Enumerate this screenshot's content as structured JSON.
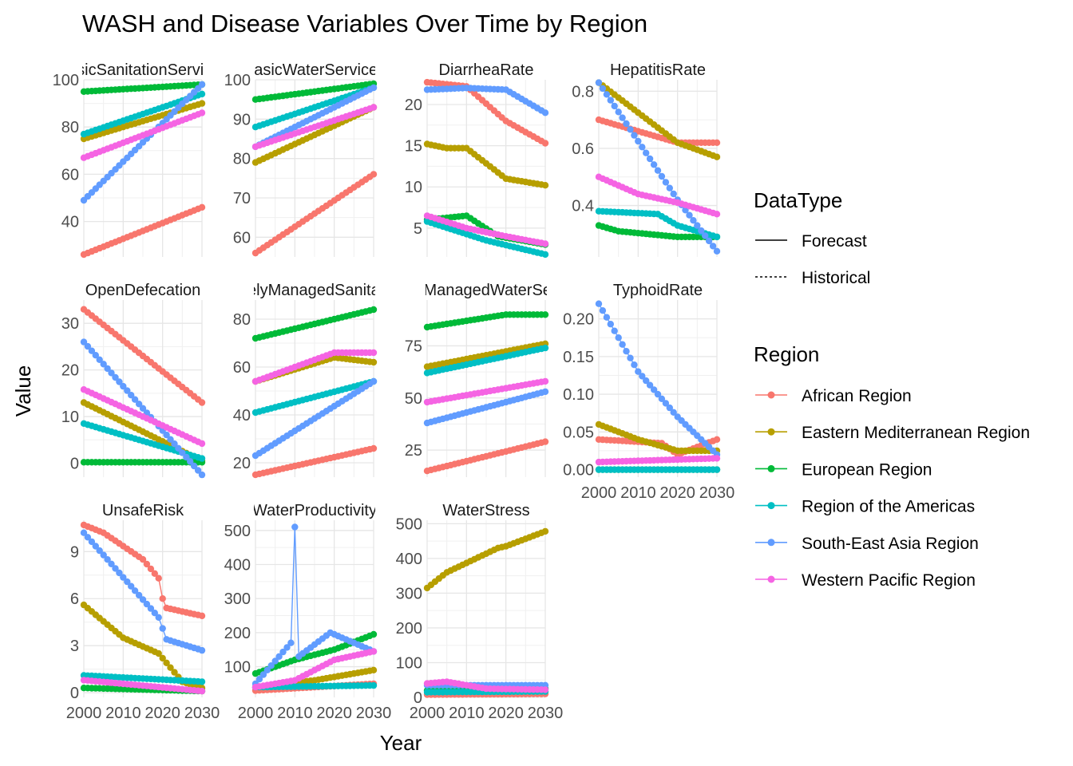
{
  "title": "WASH and Disease Variables Over Time by Region",
  "xlabel": "Year",
  "ylabel": "Value",
  "legend": {
    "datatype_title": "DataType",
    "datatype_items": [
      {
        "label": "Forecast",
        "linetype": "solid"
      },
      {
        "label": "Historical",
        "linetype": "dotted"
      }
    ],
    "region_title": "Region"
  },
  "chart_data": {
    "type": "line",
    "facets_layout": "4 columns, free y scales",
    "x_range": [
      2000,
      2030
    ],
    "x_ticks": [
      2000,
      2010,
      2020,
      2030
    ],
    "grid": true,
    "regions": [
      {
        "name": "African Region",
        "color": "#F8766D"
      },
      {
        "name": "Eastern Mediterranean Region",
        "color": "#B79F00"
      },
      {
        "name": "European Region",
        "color": "#00BA38"
      },
      {
        "name": "Region of the Americas",
        "color": "#00BFC4"
      },
      {
        "name": "South-East Asia Region",
        "color": "#619CFF"
      },
      {
        "name": "Western Pacific Region",
        "color": "#F564E3"
      }
    ],
    "panels": [
      {
        "label": "BasicSanitationServices",
        "ylim": [
          25,
          100
        ],
        "yticks": [
          40,
          60,
          80,
          100
        ],
        "series": {
          "African Region": [
            [
              2000,
              26
            ],
            [
              2030,
              46
            ]
          ],
          "Eastern Mediterranean Region": [
            [
              2000,
              75
            ],
            [
              2030,
              90
            ]
          ],
          "European Region": [
            [
              2000,
              95
            ],
            [
              2030,
              98
            ]
          ],
          "Region of the Americas": [
            [
              2000,
              77
            ],
            [
              2030,
              94
            ]
          ],
          "South-East Asia Region": [
            [
              2000,
              49
            ],
            [
              2030,
              98
            ]
          ],
          "Western Pacific Region": [
            [
              2000,
              67
            ],
            [
              2030,
              86
            ]
          ]
        }
      },
      {
        "label": "BasicWaterServices",
        "ylim": [
          55,
          100
        ],
        "yticks": [
          60,
          70,
          80,
          90,
          100
        ],
        "series": {
          "African Region": [
            [
              2000,
              56
            ],
            [
              2030,
              76
            ]
          ],
          "Eastern Mediterranean Region": [
            [
              2000,
              79
            ],
            [
              2030,
              93
            ]
          ],
          "European Region": [
            [
              2000,
              95
            ],
            [
              2030,
              99
            ]
          ],
          "Region of the Americas": [
            [
              2000,
              88
            ],
            [
              2030,
              98
            ]
          ],
          "South-East Asia Region": [
            [
              2000,
              83
            ],
            [
              2030,
              98
            ]
          ],
          "Western Pacific Region": [
            [
              2000,
              83
            ],
            [
              2030,
              93
            ]
          ]
        }
      },
      {
        "label": "DiarrheaRate",
        "ylim": [
          1.5,
          23
        ],
        "yticks": [
          5,
          10,
          15,
          20
        ],
        "series": {
          "African Region": [
            [
              2000,
              22.7
            ],
            [
              2010,
              22.2
            ],
            [
              2020,
              18
            ],
            [
              2030,
              15.3
            ]
          ],
          "Eastern Mediterranean Region": [
            [
              2000,
              15.2
            ],
            [
              2005,
              14.7
            ],
            [
              2010,
              14.7
            ],
            [
              2020,
              11
            ],
            [
              2030,
              10.2
            ]
          ],
          "European Region": [
            [
              2000,
              6
            ],
            [
              2010,
              6.5
            ],
            [
              2018,
              4
            ],
            [
              2030,
              3
            ]
          ],
          "Region of the Americas": [
            [
              2000,
              5.8
            ],
            [
              2015,
              3.5
            ],
            [
              2030,
              1.8
            ]
          ],
          "South-East Asia Region": [
            [
              2000,
              21.8
            ],
            [
              2010,
              22
            ],
            [
              2020,
              21.8
            ],
            [
              2030,
              19
            ]
          ],
          "Western Pacific Region": [
            [
              2000,
              6.5
            ],
            [
              2010,
              5
            ],
            [
              2020,
              4
            ],
            [
              2030,
              3.1
            ]
          ]
        }
      },
      {
        "label": "HepatitisRate",
        "ylim": [
          0.22,
          0.84
        ],
        "yticks": [
          0.4,
          0.6,
          0.8
        ],
        "series": {
          "African Region": [
            [
              2000,
              0.7
            ],
            [
              2005,
              0.68
            ],
            [
              2020,
              0.62
            ],
            [
              2030,
              0.62
            ]
          ],
          "Eastern Mediterranean Region": [
            [
              2000,
              0.83
            ],
            [
              2020,
              0.62
            ],
            [
              2030,
              0.57
            ]
          ],
          "European Region": [
            [
              2000,
              0.33
            ],
            [
              2005,
              0.31
            ],
            [
              2020,
              0.29
            ],
            [
              2030,
              0.29
            ]
          ],
          "Region of the Americas": [
            [
              2000,
              0.38
            ],
            [
              2015,
              0.37
            ],
            [
              2020,
              0.33
            ],
            [
              2030,
              0.29
            ]
          ],
          "South-East Asia Region": [
            [
              2000,
              0.83
            ],
            [
              2020,
              0.42
            ],
            [
              2030,
              0.24
            ]
          ],
          "Western Pacific Region": [
            [
              2000,
              0.5
            ],
            [
              2010,
              0.44
            ],
            [
              2020,
              0.41
            ],
            [
              2030,
              0.37
            ]
          ]
        }
      },
      {
        "label": "OpenDefecation",
        "ylim": [
          -3,
          35
        ],
        "yticks": [
          0,
          10,
          20,
          30
        ],
        "series": {
          "African Region": [
            [
              2000,
              33
            ],
            [
              2030,
              13
            ]
          ],
          "Eastern Mediterranean Region": [
            [
              2000,
              13
            ],
            [
              2030,
              0.5
            ]
          ],
          "European Region": [
            [
              2000,
              0.2
            ],
            [
              2030,
              0.2
            ]
          ],
          "Region of the Americas": [
            [
              2000,
              8.5
            ],
            [
              2030,
              1
            ]
          ],
          "South-East Asia Region": [
            [
              2000,
              26
            ],
            [
              2030,
              -2.5
            ]
          ],
          "Western Pacific Region": [
            [
              2000,
              15.8
            ],
            [
              2030,
              4.2
            ]
          ]
        }
      },
      {
        "label": "SafelyManagedSanitation",
        "ylim": [
          14,
          88
        ],
        "yticks": [
          20,
          40,
          60,
          80
        ],
        "series": {
          "African Region": [
            [
              2000,
              15
            ],
            [
              2030,
              26
            ]
          ],
          "Eastern Mediterranean Region": [
            [
              2000,
              54
            ],
            [
              2020,
              64
            ],
            [
              2030,
              62
            ]
          ],
          "European Region": [
            [
              2000,
              72
            ],
            [
              2030,
              84
            ]
          ],
          "Region of the Americas": [
            [
              2000,
              41
            ],
            [
              2030,
              54
            ]
          ],
          "South-East Asia Region": [
            [
              2000,
              23
            ],
            [
              2030,
              54
            ]
          ],
          "Western Pacific Region": [
            [
              2000,
              54
            ],
            [
              2020,
              66
            ],
            [
              2030,
              66
            ]
          ]
        }
      },
      {
        "label": "SafelyManagedWaterServices",
        "ylim": [
          12,
          97
        ],
        "yticks": [
          25,
          50,
          75
        ],
        "series": {
          "African Region": [
            [
              2000,
              15
            ],
            [
              2030,
              29
            ]
          ],
          "Eastern Mediterranean Region": [
            [
              2000,
              65
            ],
            [
              2030,
              76
            ]
          ],
          "European Region": [
            [
              2000,
              84
            ],
            [
              2020,
              90
            ],
            [
              2030,
              90
            ]
          ],
          "Region of the Americas": [
            [
              2000,
              62
            ],
            [
              2030,
              74
            ]
          ],
          "South-East Asia Region": [
            [
              2000,
              38
            ],
            [
              2030,
              53
            ]
          ],
          "Western Pacific Region": [
            [
              2000,
              48
            ],
            [
              2030,
              58
            ]
          ]
        }
      },
      {
        "label": "TyphoidRate",
        "ylim": [
          -0.01,
          0.225
        ],
        "yticks": [
          0.0,
          0.05,
          0.1,
          0.15,
          0.2
        ],
        "series": {
          "African Region": [
            [
              2000,
              0.04
            ],
            [
              2016,
              0.035
            ],
            [
              2020,
              0.02
            ],
            [
              2030,
              0.04
            ]
          ],
          "Eastern Mediterranean Region": [
            [
              2000,
              0.06
            ],
            [
              2010,
              0.04
            ],
            [
              2020,
              0.025
            ],
            [
              2030,
              0.025
            ]
          ],
          "European Region": [
            [
              2000,
              0.0
            ],
            [
              2030,
              0.0
            ]
          ],
          "Region of the Americas": [
            [
              2000,
              0.0
            ],
            [
              2030,
              0.0
            ]
          ],
          "South-East Asia Region": [
            [
              2000,
              0.22
            ],
            [
              2010,
              0.13
            ],
            [
              2020,
              0.07
            ],
            [
              2030,
              0.02
            ]
          ],
          "Western Pacific Region": [
            [
              2000,
              0.01
            ],
            [
              2030,
              0.015
            ]
          ]
        }
      },
      {
        "label": "UnsafeRisk",
        "ylim": [
          -0.3,
          11
        ],
        "yticks": [
          0,
          3,
          6,
          9
        ],
        "series": {
          "African Region": [
            [
              2000,
              10.7
            ],
            [
              2005,
              10.2
            ],
            [
              2015,
              8.5
            ],
            [
              2019,
              7.3
            ],
            [
              2020,
              6
            ],
            [
              2021,
              5.4
            ],
            [
              2030,
              4.9
            ]
          ],
          "Eastern Mediterranean Region": [
            [
              2000,
              5.6
            ],
            [
              2010,
              3.5
            ],
            [
              2019,
              2.5
            ],
            [
              2025,
              0.7
            ],
            [
              2030,
              0.3
            ]
          ],
          "European Region": [
            [
              2000,
              0.3
            ],
            [
              2030,
              0.1
            ]
          ],
          "Region of the Americas": [
            [
              2000,
              1.1
            ],
            [
              2030,
              0.7
            ]
          ],
          "South-East Asia Region": [
            [
              2000,
              10.2
            ],
            [
              2019,
              4.8
            ],
            [
              2021,
              3.4
            ],
            [
              2030,
              2.7
            ]
          ],
          "Western Pacific Region": [
            [
              2000,
              0.8
            ],
            [
              2030,
              0.1
            ]
          ]
        }
      },
      {
        "label": "WaterProductivity",
        "ylim": [
          10,
          530
        ],
        "yticks": [
          100,
          200,
          300,
          400,
          500
        ],
        "series": {
          "African Region": [
            [
              2000,
              30
            ],
            [
              2030,
              50
            ]
          ],
          "Eastern Mediterranean Region": [
            [
              2000,
              40
            ],
            [
              2015,
              60
            ],
            [
              2030,
              90
            ]
          ],
          "European Region": [
            [
              2000,
              80
            ],
            [
              2010,
              120
            ],
            [
              2020,
              150
            ],
            [
              2030,
              195
            ]
          ],
          "Region of the Americas": [
            [
              2000,
              40
            ],
            [
              2030,
              45
            ]
          ],
          "South-East Asia Region": [
            [
              2000,
              50
            ],
            [
              2009,
              170
            ],
            [
              2010,
              510
            ],
            [
              2011,
              130
            ],
            [
              2019,
              200
            ],
            [
              2030,
              145
            ]
          ],
          "Western Pacific Region": [
            [
              2000,
              40
            ],
            [
              2010,
              60
            ],
            [
              2020,
              120
            ],
            [
              2030,
              145
            ]
          ]
        }
      },
      {
        "label": "WaterStress",
        "ylim": [
          0,
          510
        ],
        "yticks": [
          0,
          100,
          200,
          300,
          400,
          500
        ],
        "series": {
          "African Region": [
            [
              2000,
              8
            ],
            [
              2030,
              10
            ]
          ],
          "Eastern Mediterranean Region": [
            [
              2000,
              315
            ],
            [
              2005,
              360
            ],
            [
              2018,
              430
            ],
            [
              2020,
              435
            ],
            [
              2030,
              478
            ]
          ],
          "European Region": [
            [
              2000,
              20
            ],
            [
              2030,
              25
            ]
          ],
          "Region of the Americas": [
            [
              2000,
              15
            ],
            [
              2030,
              17
            ]
          ],
          "South-East Asia Region": [
            [
              2000,
              35
            ],
            [
              2030,
              35
            ]
          ],
          "Western Pacific Region": [
            [
              2000,
              40
            ],
            [
              2005,
              45
            ],
            [
              2015,
              25
            ],
            [
              2030,
              22
            ]
          ]
        }
      }
    ]
  }
}
